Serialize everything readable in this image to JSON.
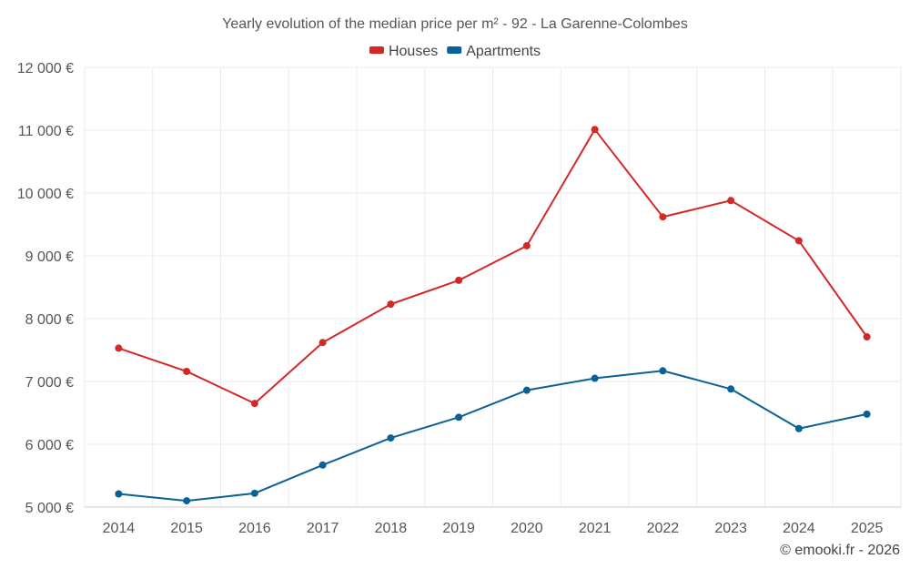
{
  "chart_data": {
    "type": "line",
    "title": "Yearly evolution of the median price per m² - 92 - La Garenne-Colombes",
    "categories": [
      "2014",
      "2015",
      "2016",
      "2017",
      "2018",
      "2019",
      "2020",
      "2021",
      "2022",
      "2023",
      "2024",
      "2025"
    ],
    "series": [
      {
        "name": "Houses",
        "color": "#d42828",
        "values": [
          7530,
          7160,
          6650,
          7620,
          8230,
          8610,
          9160,
          11010,
          9620,
          9880,
          9240,
          7710
        ]
      },
      {
        "name": "Apartments",
        "color": "#0a6196",
        "values": [
          5210,
          5100,
          5220,
          5670,
          6100,
          6430,
          6860,
          7050,
          7170,
          6880,
          6250,
          6480
        ]
      }
    ],
    "ylim": [
      5000,
      12000
    ],
    "yticks": [
      5000,
      6000,
      7000,
      8000,
      9000,
      10000,
      11000,
      12000
    ],
    "ytick_labels": [
      "5 000 €",
      "6 000 €",
      "7 000 €",
      "8 000 €",
      "9 000 €",
      "10 000 €",
      "11 000 €",
      "12 000 €"
    ],
    "xlabel": "",
    "ylabel": "",
    "grid": true,
    "legend_position": "top-center"
  },
  "credit": "© emooki.fr - 2026"
}
